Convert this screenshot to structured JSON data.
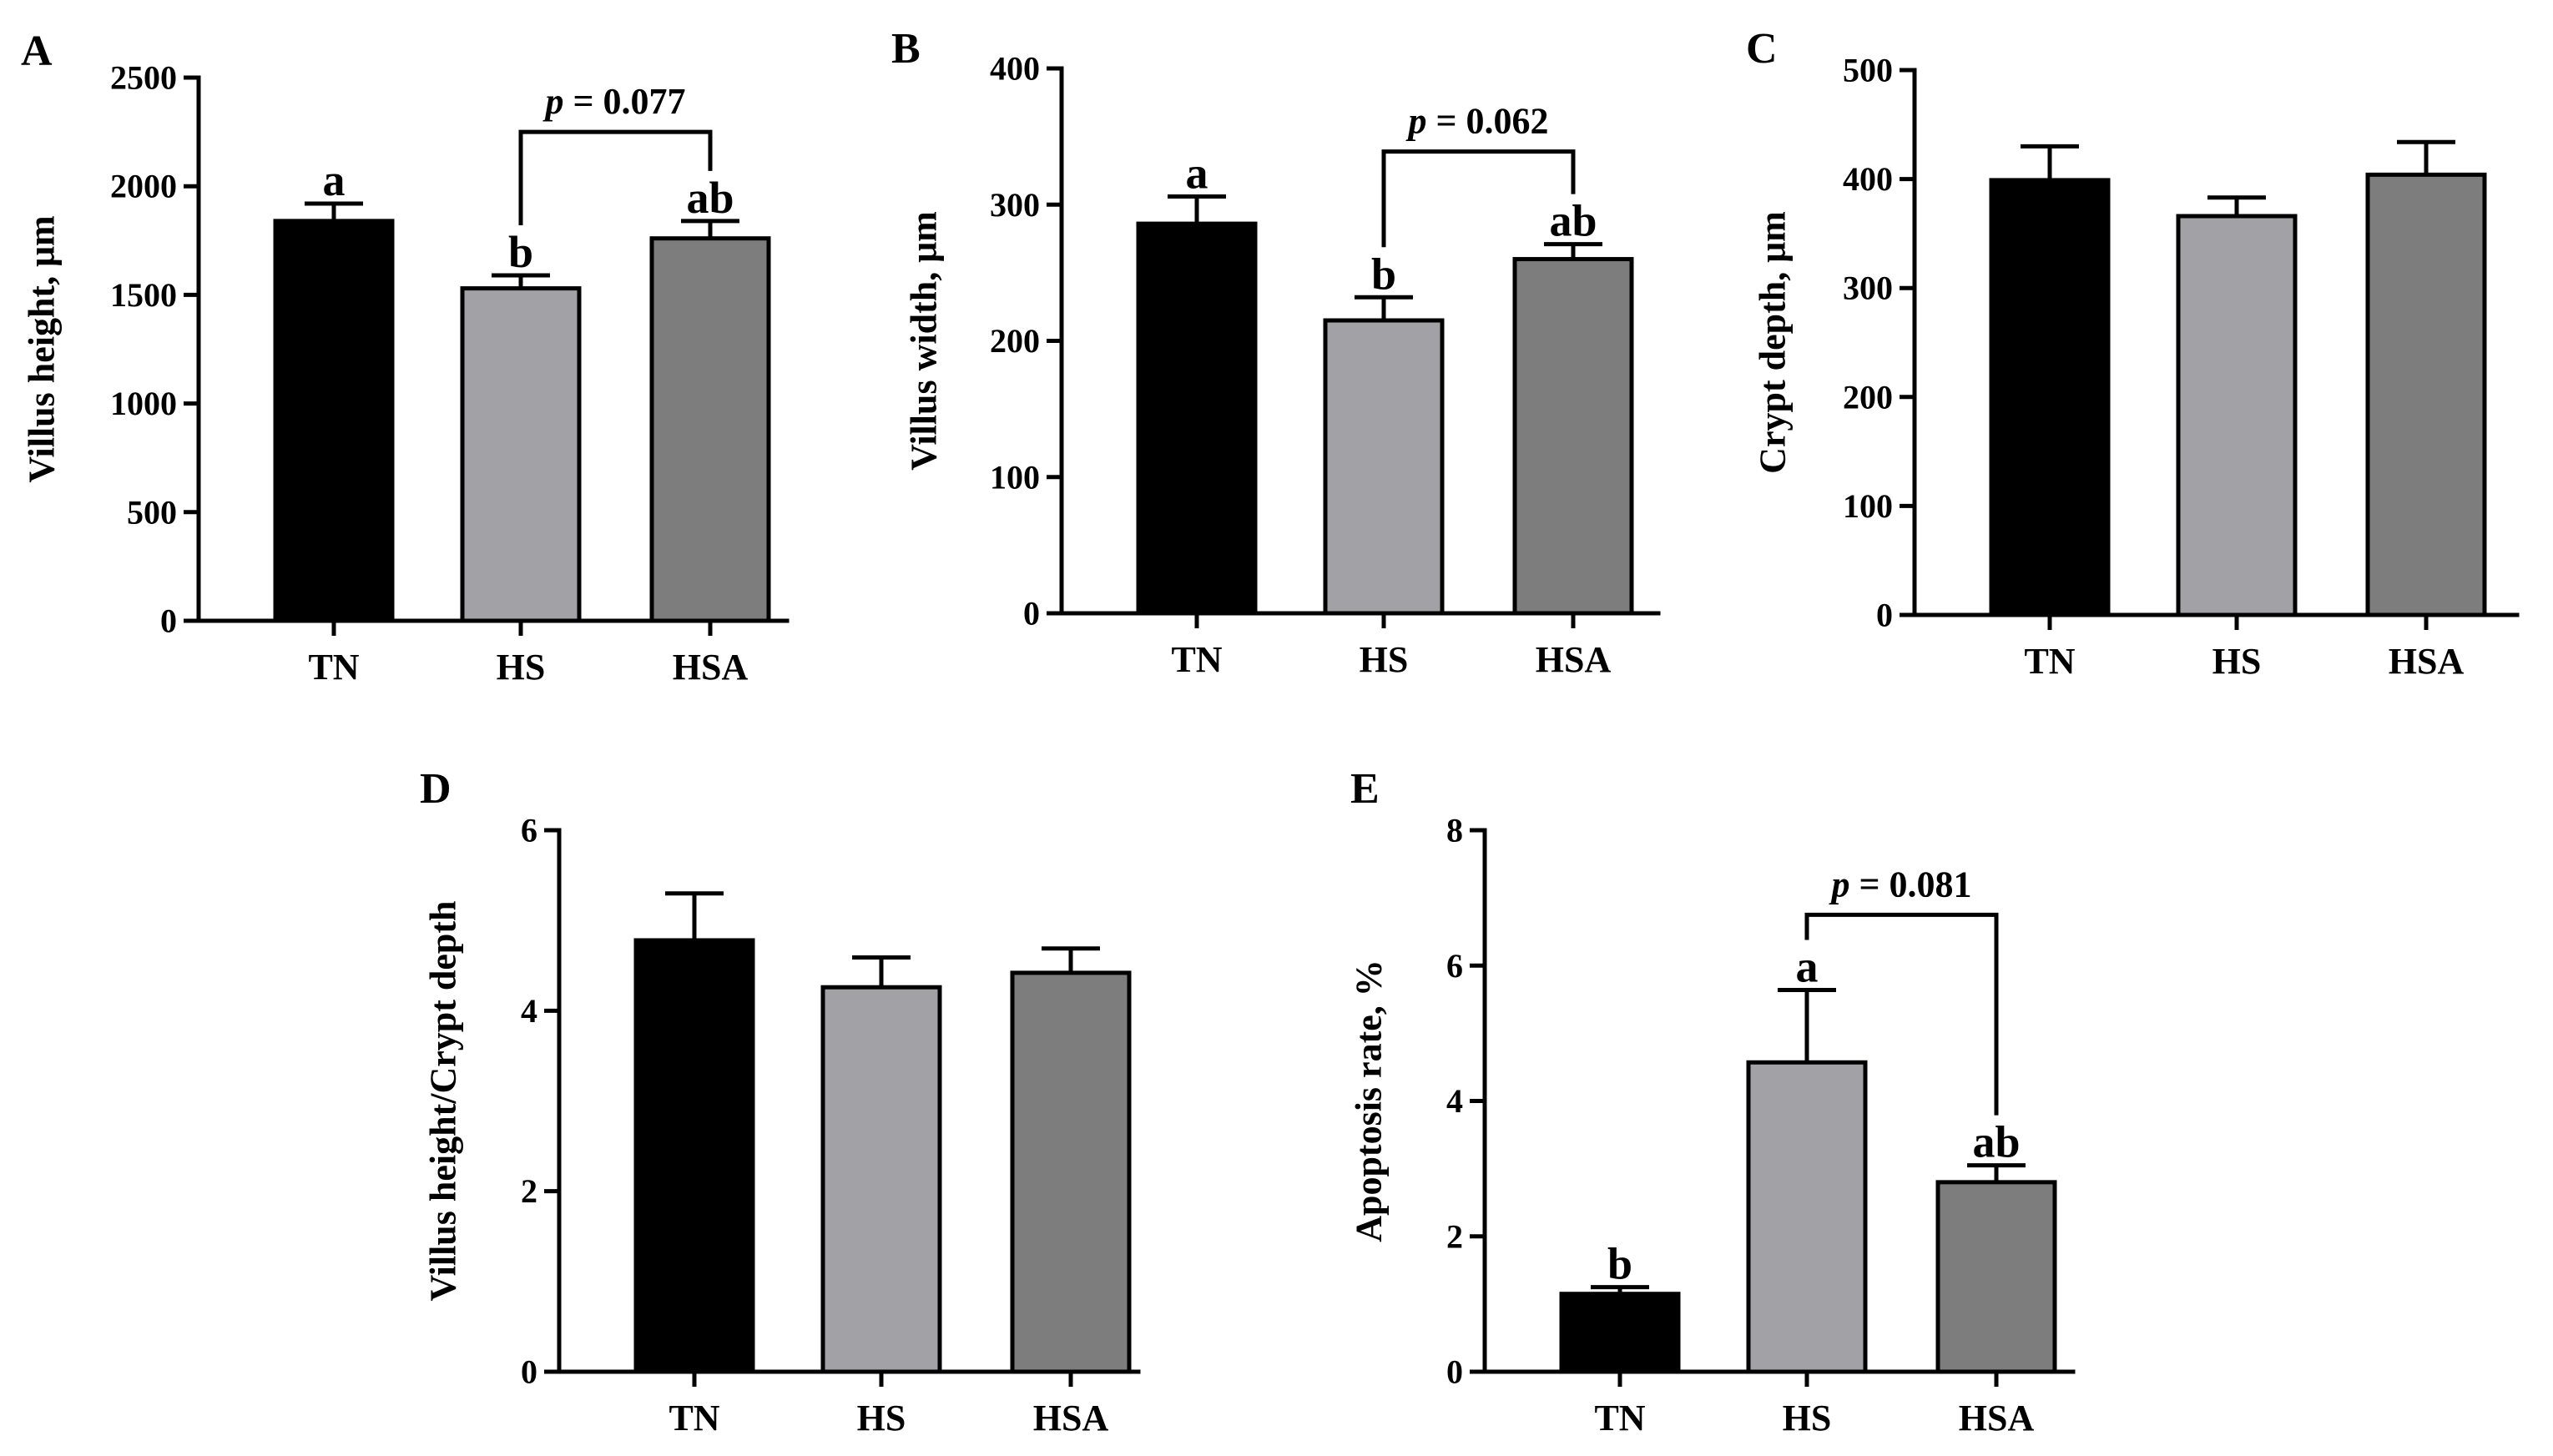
{
  "figure": {
    "colors": {
      "TN": "#000000",
      "HS": "#a2a2a6",
      "HSA": "#7d7d7d",
      "axis": "#000000"
    }
  },
  "chart_data": [
    {
      "panel": "A",
      "type": "bar",
      "ylabel": "Villus height, μm",
      "ylim": [
        0,
        2500
      ],
      "yticks": [
        0,
        500,
        1000,
        1500,
        2000,
        2500
      ],
      "categories": [
        "TN",
        "HS",
        "HSA"
      ],
      "values": [
        1840,
        1530,
        1760
      ],
      "errors": [
        80,
        60,
        80
      ],
      "letters": [
        "a",
        "b",
        "ab"
      ],
      "comparison": {
        "from": 1,
        "to": 2,
        "label_prefix": "p",
        "label_value": " = 0.077",
        "level": 2250
      }
    },
    {
      "panel": "B",
      "type": "bar",
      "ylabel": "Villus width, μm",
      "ylim": [
        0,
        400
      ],
      "yticks": [
        0,
        100,
        200,
        300,
        400
      ],
      "categories": [
        "TN",
        "HS",
        "HSA"
      ],
      "values": [
        286,
        215,
        260
      ],
      "errors": [
        20,
        17,
        11
      ],
      "letters": [
        "a",
        "b",
        "ab"
      ],
      "comparison": {
        "from": 1,
        "to": 2,
        "label_prefix": "p",
        "label_value": " = 0.062",
        "level": 339
      }
    },
    {
      "panel": "C",
      "type": "bar",
      "ylabel": "Crypt depth, μm",
      "ylim": [
        0,
        500
      ],
      "yticks": [
        0,
        100,
        200,
        300,
        400,
        500
      ],
      "categories": [
        "TN",
        "HS",
        "HSA"
      ],
      "values": [
        399,
        366,
        404
      ],
      "errors": [
        31,
        17,
        30
      ],
      "letters": [
        "",
        "",
        ""
      ]
    },
    {
      "panel": "D",
      "type": "bar",
      "ylabel": "Villus height/Crypt depth",
      "ylim": [
        0,
        6
      ],
      "yticks": [
        0,
        2,
        4,
        6
      ],
      "categories": [
        "TN",
        "HS",
        "HSA"
      ],
      "values": [
        4.78,
        4.26,
        4.42
      ],
      "errors": [
        0.52,
        0.33,
        0.27
      ],
      "letters": [
        "",
        "",
        ""
      ]
    },
    {
      "panel": "E",
      "type": "bar",
      "ylabel": "Apoptosis rate, %",
      "ylim": [
        0,
        8
      ],
      "yticks": [
        0,
        2,
        4,
        6,
        8
      ],
      "categories": [
        "TN",
        "HS",
        "HSA"
      ],
      "values": [
        1.15,
        4.57,
        2.8
      ],
      "errors": [
        0.1,
        1.07,
        0.25
      ],
      "letters": [
        "b",
        "a",
        "ab"
      ],
      "comparison": {
        "from": 1,
        "to": 2,
        "label_prefix": "p",
        "label_value": " = 0.081",
        "level": 6.75
      }
    }
  ]
}
